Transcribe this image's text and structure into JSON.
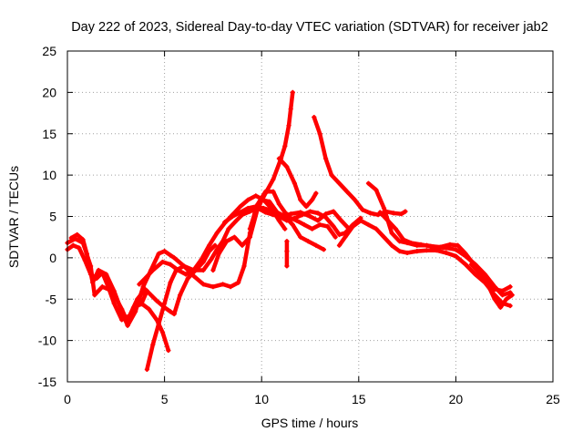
{
  "chart_data": {
    "type": "scatter",
    "title": "Day 222 of 2023, Sidereal Day-to-day VTEC variation (SDTVAR) for receiver jab2",
    "xlabel": "GPS time / hours",
    "ylabel": "SDTVAR / TECUs",
    "xlim": [
      0,
      25
    ],
    "ylim": [
      -15,
      25
    ],
    "xticks": [
      0,
      5,
      10,
      15,
      20,
      25
    ],
    "yticks": [
      -15,
      -10,
      -5,
      0,
      5,
      10,
      15,
      20,
      25
    ],
    "grid": true,
    "marker": "+",
    "color": "#ff0000",
    "series": [
      {
        "name": "satellite track 1",
        "points": [
          [
            0.0,
            1.0
          ],
          [
            0.3,
            1.5
          ],
          [
            0.6,
            1.2
          ],
          [
            0.9,
            -0.3
          ],
          [
            1.2,
            -2.0
          ],
          [
            1.5,
            -2.5
          ],
          [
            1.8,
            -1.8
          ],
          [
            2.1,
            -3.5
          ],
          [
            2.4,
            -5.5
          ],
          [
            2.8,
            -7.5
          ],
          [
            3.2,
            -7.0
          ],
          [
            3.6,
            -5.0
          ],
          [
            4.0,
            -3.8
          ],
          [
            4.3,
            -4.5
          ],
          [
            4.6,
            -5.2
          ],
          [
            5.0,
            -6.0
          ],
          [
            5.3,
            -6.5
          ],
          [
            5.5,
            -6.8
          ],
          [
            5.8,
            -4.5
          ],
          [
            6.2,
            -2.5
          ],
          [
            6.6,
            -1.5
          ],
          [
            7.0,
            -0.5
          ],
          [
            7.3,
            0.8
          ],
          [
            7.6,
            1.5
          ]
        ]
      },
      {
        "name": "satellite track 2",
        "points": [
          [
            0.0,
            1.8
          ],
          [
            0.4,
            2.3
          ],
          [
            0.8,
            1.8
          ],
          [
            1.2,
            -1.0
          ],
          [
            1.4,
            -4.5
          ],
          [
            1.8,
            -3.5
          ],
          [
            2.3,
            -4.0
          ],
          [
            2.8,
            -6.2
          ],
          [
            3.1,
            -7.8
          ],
          [
            3.4,
            -6.0
          ],
          [
            3.8,
            -5.6
          ],
          [
            4.1,
            -4.0
          ]
        ]
      },
      {
        "name": "satellite track 3",
        "points": [
          [
            0.2,
            2.4
          ],
          [
            0.5,
            2.8
          ],
          [
            0.8,
            2.2
          ],
          [
            1.0,
            0.5
          ],
          [
            1.3,
            -3.0
          ],
          [
            1.6,
            -1.5
          ],
          [
            2.0,
            -2.0
          ],
          [
            2.4,
            -4.0
          ],
          [
            2.8,
            -6.5
          ],
          [
            3.1,
            -8.2
          ],
          [
            3.5,
            -6.5
          ],
          [
            3.9,
            -3.5
          ],
          [
            4.3,
            -1.5
          ],
          [
            4.7,
            0.5
          ],
          [
            5.0,
            0.8
          ],
          [
            5.5,
            0.0
          ],
          [
            6.0,
            -1.0
          ],
          [
            6.5,
            -2.2
          ],
          [
            7.0,
            -3.2
          ],
          [
            7.5,
            -3.5
          ],
          [
            8.0,
            -3.2
          ],
          [
            8.4,
            -3.5
          ],
          [
            8.8,
            -3.0
          ],
          [
            9.1,
            -1.0
          ],
          [
            9.4,
            3.0
          ],
          [
            9.7,
            6.0
          ],
          [
            10.0,
            7.0
          ],
          [
            10.4,
            6.8
          ],
          [
            10.8,
            5.5
          ],
          [
            11.2,
            5.0
          ],
          [
            11.6,
            4.0
          ],
          [
            12.0,
            2.5
          ],
          [
            12.4,
            2.0
          ],
          [
            12.8,
            1.5
          ],
          [
            13.2,
            1.0
          ]
        ]
      },
      {
        "name": "satellite track 4",
        "points": [
          [
            3.7,
            -3.2
          ],
          [
            4.0,
            -2.5
          ],
          [
            4.4,
            -1.5
          ],
          [
            4.9,
            -0.5
          ],
          [
            5.3,
            -0.8
          ],
          [
            5.7,
            -1.5
          ],
          [
            6.1,
            -2.0
          ],
          [
            6.5,
            -1.5
          ],
          [
            6.9,
            -0.2
          ],
          [
            7.3,
            1.5
          ],
          [
            7.7,
            3.0
          ],
          [
            8.1,
            4.2
          ],
          [
            8.5,
            5.2
          ],
          [
            8.9,
            6.2
          ],
          [
            9.3,
            7.0
          ],
          [
            9.7,
            7.5
          ],
          [
            10.1,
            7.0
          ],
          [
            10.5,
            6.0
          ],
          [
            10.9,
            4.5
          ],
          [
            11.2,
            3.5
          ]
        ]
      },
      {
        "name": "satellite track 5",
        "points": [
          [
            4.1,
            -13.5
          ],
          [
            4.4,
            -10.5
          ],
          [
            4.7,
            -8.0
          ],
          [
            5.0,
            -5.5
          ],
          [
            5.3,
            -3.0
          ],
          [
            5.6,
            -1.5
          ],
          [
            6.0,
            -1.0
          ],
          [
            6.5,
            -1.5
          ],
          [
            7.0,
            -1.5
          ],
          [
            7.4,
            -0.2
          ],
          [
            7.7,
            1.0
          ],
          [
            8.0,
            2.0
          ],
          [
            8.3,
            3.5
          ],
          [
            8.7,
            4.5
          ],
          [
            9.0,
            5.2
          ],
          [
            9.4,
            5.6
          ],
          [
            9.8,
            6.0
          ],
          [
            10.2,
            5.5
          ],
          [
            10.6,
            5.2
          ],
          [
            11.0,
            5.0
          ],
          [
            11.5,
            5.3
          ],
          [
            12.0,
            5.5
          ],
          [
            12.5,
            5.0
          ],
          [
            12.9,
            4.5
          ],
          [
            13.3,
            5.3
          ],
          [
            13.7,
            5.6
          ],
          [
            14.1,
            4.5
          ],
          [
            14.5,
            3.5
          ]
        ]
      },
      {
        "name": "satellite track 6",
        "points": [
          [
            3.8,
            -5.5
          ],
          [
            4.2,
            -6.2
          ],
          [
            4.6,
            -7.5
          ],
          [
            4.9,
            -9.0
          ],
          [
            5.2,
            -11.2
          ]
        ]
      },
      {
        "name": "satellite track 7",
        "points": [
          [
            7.5,
            -1.5
          ],
          [
            7.8,
            0.5
          ],
          [
            8.2,
            2.0
          ],
          [
            8.6,
            2.5
          ],
          [
            9.0,
            1.5
          ],
          [
            9.4,
            2.5
          ],
          [
            9.8,
            6.0
          ],
          [
            10.2,
            7.8
          ],
          [
            10.6,
            9.5
          ],
          [
            11.0,
            12.0
          ],
          [
            11.2,
            13.5
          ],
          [
            11.4,
            16.0
          ],
          [
            11.5,
            18.0
          ],
          [
            11.6,
            20.0
          ]
        ]
      },
      {
        "name": "satellite track 8",
        "points": [
          [
            9.4,
            3.5
          ],
          [
            9.8,
            6.5
          ],
          [
            10.2,
            8.0
          ],
          [
            10.6,
            8.0
          ],
          [
            10.9,
            6.5
          ],
          [
            11.2,
            5.5
          ],
          [
            11.5,
            4.8
          ],
          [
            11.8,
            4.5
          ],
          [
            12.2,
            4.0
          ],
          [
            12.6,
            3.5
          ],
          [
            13.0,
            4.0
          ],
          [
            13.4,
            3.8
          ],
          [
            13.8,
            2.5
          ]
        ]
      },
      {
        "name": "satellite track 9",
        "points": [
          [
            8.1,
            4.3
          ],
          [
            8.5,
            5.0
          ],
          [
            8.9,
            5.5
          ],
          [
            9.3,
            6.0
          ],
          [
            9.7,
            6.2
          ],
          [
            10.1,
            6.0
          ],
          [
            10.5,
            5.7
          ],
          [
            10.9,
            5.0
          ],
          [
            11.3,
            4.5
          ],
          [
            11.7,
            4.8
          ],
          [
            12.1,
            5.2
          ],
          [
            12.5,
            5.6
          ],
          [
            12.9,
            5.4
          ],
          [
            13.3,
            4.9
          ],
          [
            13.7,
            3.8
          ],
          [
            14.0,
            2.8
          ],
          [
            14.3,
            3.0
          ],
          [
            14.7,
            4.0
          ],
          [
            15.1,
            4.8
          ]
        ]
      },
      {
        "name": "satellite track 10",
        "points": [
          [
            10.9,
            12.0
          ],
          [
            11.3,
            11.0
          ],
          [
            11.7,
            9.0
          ],
          [
            12.0,
            7.0
          ],
          [
            12.3,
            6.2
          ],
          [
            12.6,
            7.0
          ],
          [
            12.8,
            7.8
          ]
        ]
      },
      {
        "name": "satellite track 11",
        "points": [
          [
            12.7,
            17.0
          ],
          [
            13.0,
            15.0
          ],
          [
            13.3,
            12.0
          ],
          [
            13.6,
            10.0
          ],
          [
            14.0,
            9.0
          ],
          [
            14.4,
            8.0
          ],
          [
            14.8,
            7.0
          ],
          [
            15.2,
            5.8
          ],
          [
            15.6,
            5.4
          ],
          [
            16.0,
            5.2
          ],
          [
            16.4,
            5.6
          ],
          [
            16.8,
            5.4
          ],
          [
            17.2,
            5.3
          ],
          [
            17.4,
            5.6
          ]
        ]
      },
      {
        "name": "satellite track 12",
        "points": [
          [
            11.3,
            0.8
          ],
          [
            11.3,
            -1.0
          ],
          [
            11.3,
            2.0
          ]
        ]
      },
      {
        "name": "satellite track 13",
        "points": [
          [
            14.0,
            1.5
          ],
          [
            14.3,
            2.5
          ],
          [
            14.7,
            3.8
          ],
          [
            15.1,
            4.5
          ],
          [
            15.5,
            4.0
          ],
          [
            15.9,
            3.5
          ],
          [
            16.3,
            2.5
          ],
          [
            16.7,
            1.5
          ],
          [
            17.1,
            0.8
          ],
          [
            17.5,
            0.6
          ],
          [
            18.0,
            0.8
          ],
          [
            18.5,
            0.9
          ],
          [
            19.0,
            0.9
          ],
          [
            19.5,
            0.6
          ],
          [
            20.0,
            0.2
          ],
          [
            20.5,
            -0.8
          ],
          [
            21.0,
            -2.0
          ],
          [
            21.5,
            -3.0
          ],
          [
            22.0,
            -4.5
          ],
          [
            22.4,
            -5.5
          ],
          [
            22.8,
            -5.8
          ]
        ]
      },
      {
        "name": "satellite track 14",
        "points": [
          [
            15.5,
            9.0
          ],
          [
            15.9,
            8.2
          ],
          [
            16.3,
            6.0
          ],
          [
            16.7,
            3.0
          ],
          [
            17.1,
            2.0
          ],
          [
            17.5,
            1.8
          ],
          [
            18.0,
            1.5
          ],
          [
            18.5,
            1.5
          ],
          [
            19.0,
            1.3
          ],
          [
            19.5,
            1.2
          ],
          [
            20.0,
            1.0
          ],
          [
            20.5,
            0.2
          ],
          [
            21.0,
            -0.8
          ],
          [
            21.5,
            -2.0
          ],
          [
            22.0,
            -3.5
          ],
          [
            22.4,
            -4.5
          ],
          [
            22.8,
            -4.2
          ]
        ]
      },
      {
        "name": "satellite track 15",
        "points": [
          [
            16.1,
            5.5
          ],
          [
            16.5,
            4.5
          ],
          [
            16.9,
            3.5
          ],
          [
            17.3,
            2.2
          ],
          [
            17.7,
            1.8
          ],
          [
            18.2,
            1.6
          ],
          [
            18.7,
            1.4
          ],
          [
            19.2,
            1.3
          ],
          [
            19.7,
            1.6
          ],
          [
            20.1,
            1.5
          ],
          [
            20.5,
            0.5
          ],
          [
            21.0,
            -1.0
          ],
          [
            21.5,
            -2.5
          ],
          [
            22.0,
            -3.8
          ],
          [
            22.4,
            -4.0
          ],
          [
            22.8,
            -3.5
          ]
        ]
      },
      {
        "name": "satellite track 16",
        "points": [
          [
            20.8,
            -0.8
          ],
          [
            21.2,
            -1.8
          ],
          [
            21.6,
            -3.0
          ],
          [
            22.0,
            -5.0
          ],
          [
            22.3,
            -6.0
          ],
          [
            22.6,
            -5.0
          ],
          [
            22.9,
            -4.5
          ]
        ]
      }
    ]
  }
}
